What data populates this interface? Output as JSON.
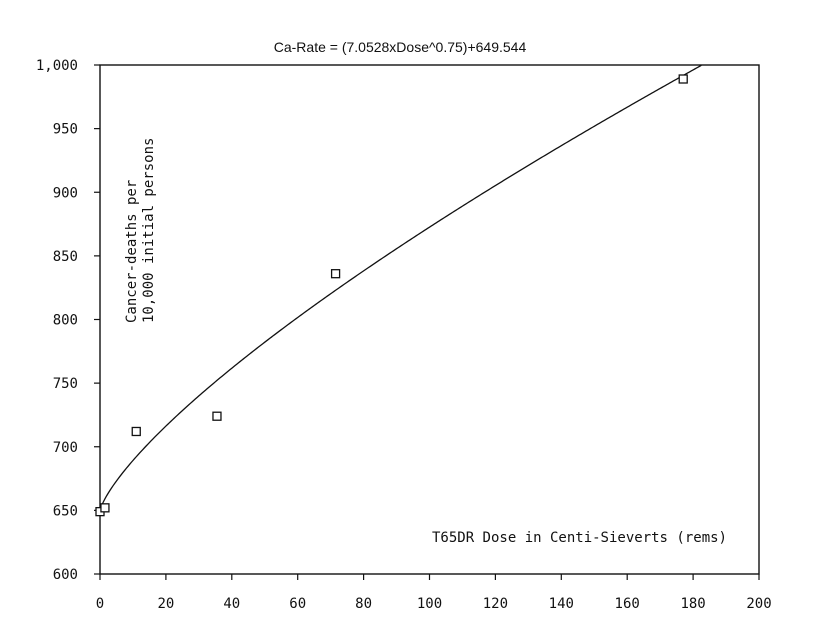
{
  "chart_data": {
    "type": "scatter",
    "title": "Ca-Rate = (7.0528xDose^0.75)+649.544",
    "xlabel": "T65DR Dose in Centi-Sieverts (rems)",
    "ylabel_lines": [
      "Cancer-deaths per",
      "10,000 initial persons"
    ],
    "xlim": [
      0,
      200
    ],
    "ylim": [
      600,
      1000
    ],
    "x_ticks": [
      0,
      20,
      40,
      60,
      80,
      100,
      120,
      140,
      160,
      180,
      200
    ],
    "x_tick_labels": [
      "0",
      "20",
      "40",
      "60",
      "80",
      "100",
      "120",
      "140",
      "160",
      "180",
      "200"
    ],
    "y_ticks": [
      600,
      650,
      700,
      750,
      800,
      850,
      900,
      950,
      1000
    ],
    "y_tick_labels": [
      "600",
      "650",
      "700",
      "750",
      "800",
      "850",
      "900",
      "950",
      "1,000"
    ],
    "points": [
      {
        "x": 0,
        "y": 649
      },
      {
        "x": 1.5,
        "y": 652
      },
      {
        "x": 11,
        "y": 712
      },
      {
        "x": 35.5,
        "y": 724
      },
      {
        "x": 71.5,
        "y": 836
      },
      {
        "x": 177,
        "y": 989
      }
    ],
    "fit": {
      "coefficient": 7.0528,
      "exponent": 0.75,
      "intercept": 649.544
    },
    "grid": false,
    "legend": "none"
  }
}
